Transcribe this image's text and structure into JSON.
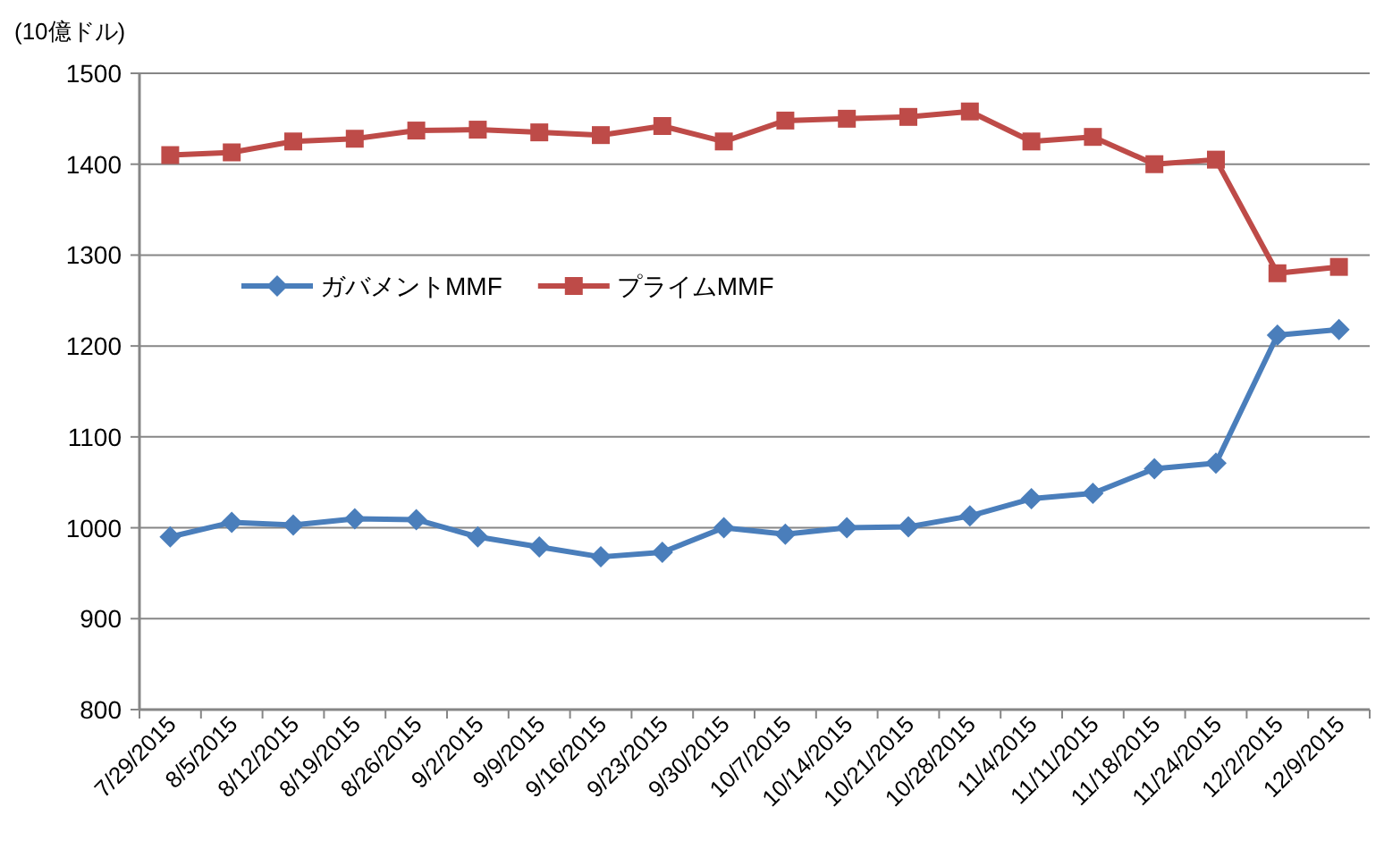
{
  "chart_data": {
    "type": "line",
    "ylabel": "(10億ドル)",
    "categories": [
      "7/29/2015",
      "8/5/2015",
      "8/12/2015",
      "8/19/2015",
      "8/26/2015",
      "9/2/2015",
      "9/9/2015",
      "9/16/2015",
      "9/23/2015",
      "9/30/2015",
      "10/7/2015",
      "10/14/2015",
      "10/21/2015",
      "10/28/2015",
      "11/4/2015",
      "11/11/2015",
      "11/18/2015",
      "11/24/2015",
      "12/2/2015",
      "12/9/2015"
    ],
    "series": [
      {
        "name": "ガバメントMMF",
        "color": "#4a7ebb",
        "marker": "diamond",
        "values": [
          990,
          1006,
          1003,
          1010,
          1009,
          990,
          979,
          968,
          973,
          1000,
          993,
          1000,
          1001,
          1013,
          1032,
          1038,
          1065,
          1071,
          1212,
          1218
        ]
      },
      {
        "name": "プライムMMF",
        "color": "#be4b48",
        "marker": "square",
        "values": [
          1410,
          1413,
          1425,
          1428,
          1437,
          1438,
          1435,
          1432,
          1442,
          1425,
          1448,
          1450,
          1452,
          1458,
          1425,
          1430,
          1400,
          1405,
          1280,
          1287
        ]
      }
    ],
    "ylim": [
      800,
      1500
    ],
    "yticks": [
      800,
      900,
      1000,
      1100,
      1200,
      1300,
      1400,
      1500
    ],
    "grid": "y",
    "legend": "left",
    "line_style": "solid"
  }
}
